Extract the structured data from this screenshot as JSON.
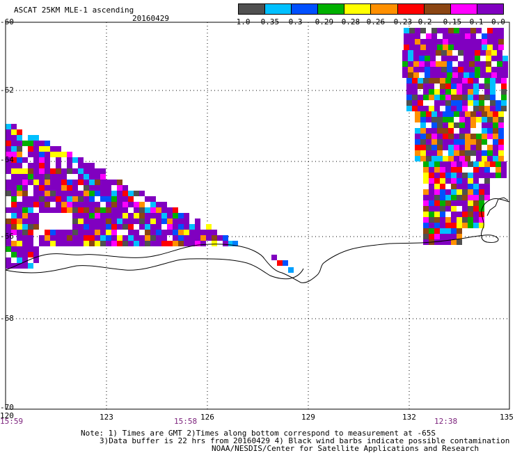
{
  "header": {
    "title": "ASCAT 25KM MLE-1 ascending",
    "date": "20160429"
  },
  "colorbar": {
    "colors": [
      "#505050",
      "#00c0ff",
      "#0050ff",
      "#00b000",
      "#ffff00",
      "#ff9000",
      "#ff0000",
      "#8b4513",
      "#ff00ff",
      "#8000c0"
    ],
    "labels": [
      "-1.0",
      "-0.35",
      "-0.3",
      "-0.29",
      "-0.28",
      "-0.26",
      "-0.23",
      "-0.2",
      "-0.15",
      "-0.1",
      "0.0"
    ]
  },
  "axes": {
    "lat_labels": [
      "-60",
      "-62",
      "-64",
      "-66",
      "-68",
      "-70"
    ],
    "lon_labels": [
      "120",
      "123",
      "126",
      "129",
      "132",
      "135"
    ],
    "time_labels": [
      "15:59",
      "15:58",
      "12:38"
    ]
  },
  "notes": {
    "line1": "Note: 1) Times are GMT 2)Times along bottom correspond to measurement at -65S",
    "line2": "3)Data buffer is 22 hrs from 20160429 4) Black wind barbs indicate possible contamination",
    "line3": "NOAA/NESDIS/Center for Satellite Applications and Research"
  }
}
